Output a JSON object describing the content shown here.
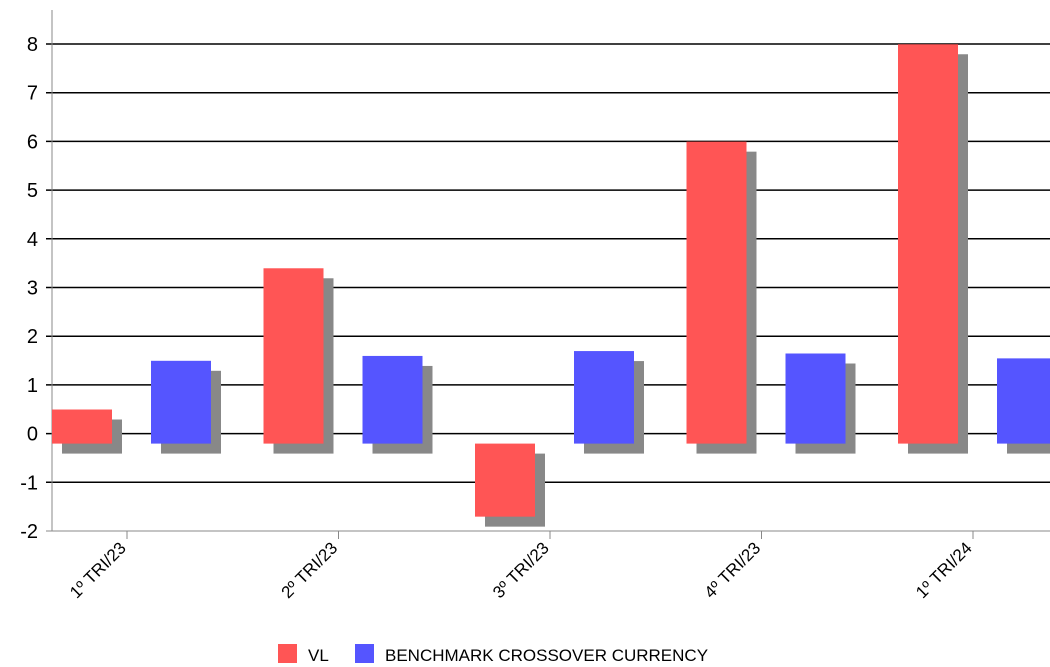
{
  "chart_data": {
    "type": "bar",
    "categories": [
      "1º TRI/23",
      "2º TRI/23",
      "3º TRI/23",
      "4º TRI/23",
      "1º TRI/24"
    ],
    "series": [
      {
        "name": "VL",
        "values": [
          0.7,
          3.6,
          -1.5,
          6.2,
          8.2
        ],
        "color": "#ff5555"
      },
      {
        "name": "BENCHMARK CROSSOVER CURRENCY",
        "values": [
          1.7,
          1.8,
          1.9,
          1.85,
          1.75
        ],
        "color": "#5555ff"
      }
    ],
    "ylim": [
      -2,
      8
    ],
    "yticks": [
      -2,
      -1,
      0,
      1,
      2,
      3,
      4,
      5,
      6,
      7,
      8
    ],
    "grid": true,
    "legend": "bottom-center",
    "shadow_color": "#888888",
    "grid_color": "#000000"
  }
}
